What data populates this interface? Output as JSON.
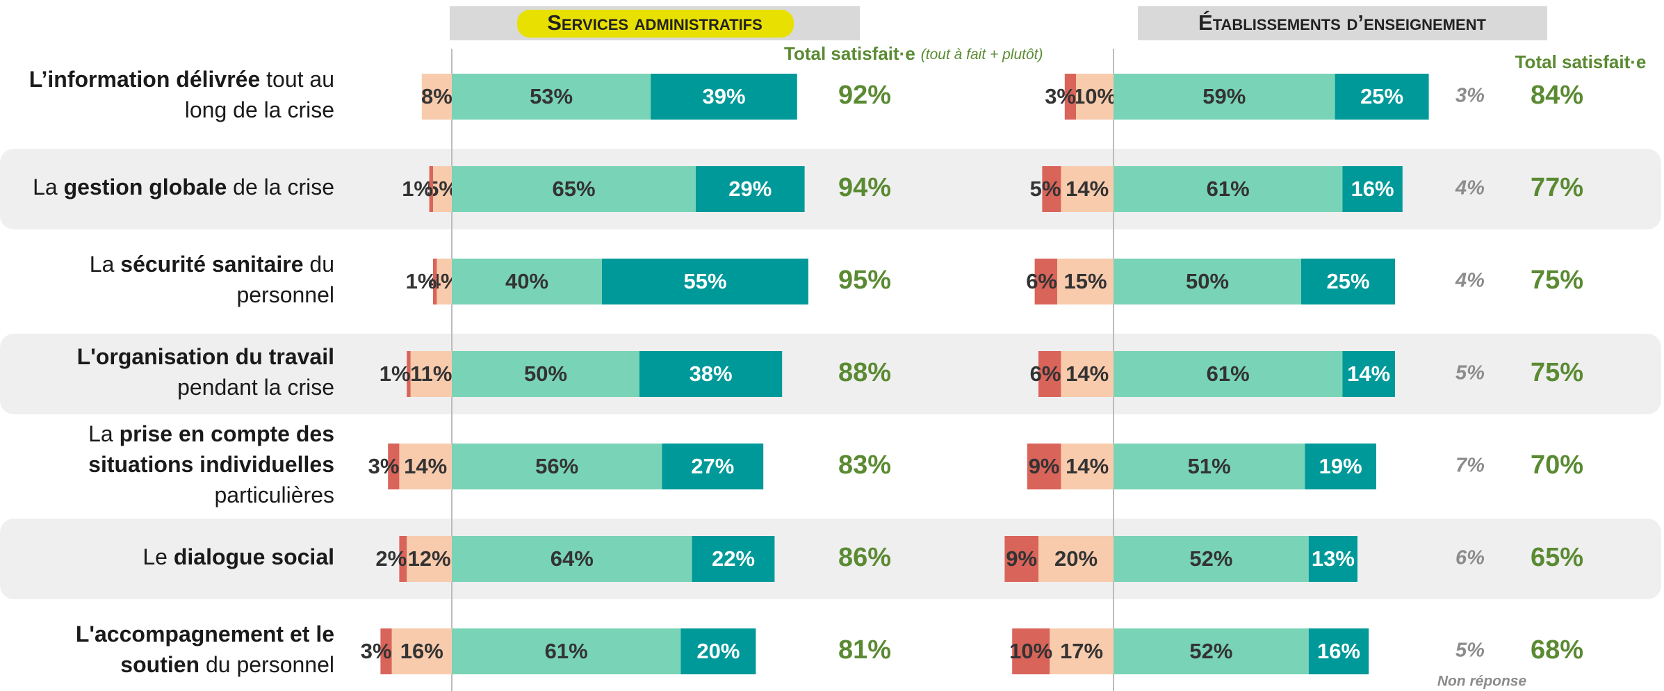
{
  "chart_data": [
    {
      "type": "bar",
      "title": "Services administratifs",
      "total_title": "Total satisfait·e",
      "total_subtitle": "(tout à fait + plutôt)",
      "categories": [
        [
          [
            {
              "text": "L’information délivrée",
              "bold": true
            },
            {
              "text": " tout au"
            }
          ],
          [
            {
              "text": "long de la crise"
            }
          ]
        ],
        [
          [
            {
              "text": "La "
            },
            {
              "text": "gestion globale",
              "bold": true
            },
            {
              "text": " de la crise"
            }
          ]
        ],
        [
          [
            {
              "text": "La "
            },
            {
              "text": "sécurité sanitaire",
              "bold": true
            },
            {
              "text": " du"
            }
          ],
          [
            {
              "text": "personnel"
            }
          ]
        ],
        [
          [
            {
              "text": "L'organisation du travail",
              "bold": true
            }
          ],
          [
            {
              "text": "pendant la crise"
            }
          ]
        ],
        [
          [
            {
              "text": "La "
            },
            {
              "text": "prise en compte des",
              "bold": true
            }
          ],
          [
            {
              "text": "situations individuelles",
              "bold": true
            }
          ],
          [
            {
              "text": "particulières"
            }
          ]
        ],
        [
          [
            {
              "text": "Le "
            },
            {
              "text": "dialogue social",
              "bold": true
            }
          ]
        ],
        [
          [
            {
              "text": "L'accompagnement et le",
              "bold": true
            }
          ],
          [
            {
              "text": "soutien",
              "bold": true
            },
            {
              "text": " du personnel"
            }
          ]
        ]
      ],
      "series": [
        {
          "color": "#d9645a",
          "side": "left",
          "values": [
            null,
            1,
            1,
            1,
            3,
            2,
            3
          ],
          "value_labels": [
            null,
            "1%",
            "1%",
            "1%",
            "3%",
            "2%",
            "3%"
          ]
        },
        {
          "color": "#f8cbad",
          "side": "left",
          "values": [
            8,
            5,
            4,
            11,
            14,
            12,
            16
          ],
          "value_labels": [
            "8%",
            "5%",
            "4%",
            "11%",
            "14%",
            "12%",
            "16%"
          ]
        },
        {
          "color": "#79d3b6",
          "side": "right",
          "values": [
            53,
            65,
            40,
            50,
            56,
            64,
            61
          ],
          "value_labels": [
            "53%",
            "65%",
            "40%",
            "50%",
            "56%",
            "64%",
            "61%"
          ]
        },
        {
          "color": "#009999",
          "side": "right",
          "values": [
            39,
            29,
            55,
            38,
            27,
            22,
            20
          ],
          "value_labels": [
            "39%",
            "29%",
            "55%",
            "38%",
            "27%",
            "22%",
            "20%"
          ]
        }
      ],
      "totals": {
        "values": [
          92,
          94,
          95,
          88,
          83,
          86,
          81
        ],
        "value_labels": [
          "92%",
          "94%",
          "95%",
          "88%",
          "83%",
          "86%",
          "81%"
        ]
      }
    },
    {
      "type": "bar",
      "title": "Établissements d’enseignement",
      "total_title": "Total satisfait·e",
      "nonresponse_title": "Non réponse",
      "series": [
        {
          "color": "#d9645a",
          "side": "left",
          "values": [
            3,
            5,
            6,
            6,
            9,
            9,
            10
          ],
          "value_labels": [
            "3%",
            "5%",
            "6%",
            "6%",
            "9%",
            "9%",
            "10%"
          ]
        },
        {
          "color": "#f8cbad",
          "side": "left",
          "values": [
            10,
            14,
            15,
            14,
            14,
            20,
            17
          ],
          "value_labels": [
            "10%",
            "14%",
            "15%",
            "14%",
            "14%",
            "20%",
            "17%"
          ]
        },
        {
          "color": "#79d3b6",
          "side": "right",
          "values": [
            59,
            61,
            50,
            61,
            51,
            52,
            52
          ],
          "value_labels": [
            "59%",
            "61%",
            "50%",
            "61%",
            "51%",
            "52%",
            "52%"
          ]
        },
        {
          "color": "#009999",
          "side": "right",
          "values": [
            25,
            16,
            25,
            14,
            19,
            13,
            16
          ],
          "value_labels": [
            "25%",
            "16%",
            "25%",
            "14%",
            "19%",
            "13%",
            "16%"
          ]
        }
      ],
      "nonresponse": {
        "values": [
          3,
          4,
          4,
          5,
          7,
          6,
          5
        ],
        "value_labels": [
          "3%",
          "4%",
          "4%",
          "5%",
          "7%",
          "6%",
          "5%"
        ]
      },
      "totals": {
        "values": [
          84,
          77,
          75,
          75,
          70,
          65,
          68
        ],
        "value_labels": [
          "84%",
          "77%",
          "75%",
          "75%",
          "70%",
          "65%",
          "68%"
        ]
      }
    }
  ]
}
